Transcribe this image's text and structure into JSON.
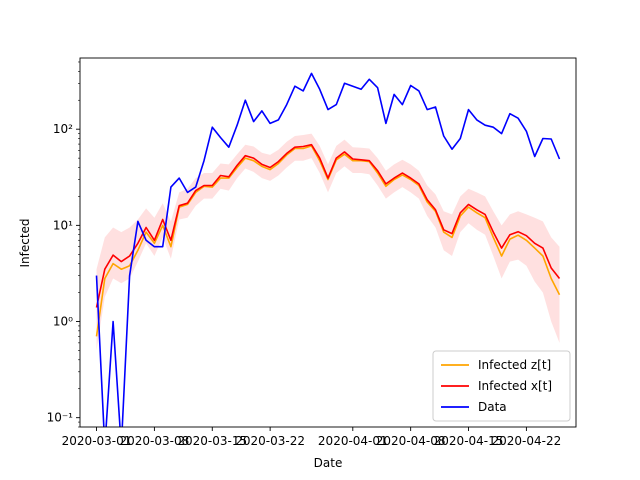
{
  "chart_data": {
    "type": "line",
    "title": "",
    "xlabel": "Date",
    "ylabel": "Infected",
    "yscale": "log",
    "ylim": [
      0.08,
      550
    ],
    "x_start": "2020-02-28",
    "x_end": "2020-04-28",
    "x_ticks": [
      {
        "date": "2020-03-01",
        "label": "2020-03-01"
      },
      {
        "date": "2020-03-08",
        "label": "2020-03-08"
      },
      {
        "date": "2020-03-15",
        "label": "2020-03-15"
      },
      {
        "date": "2020-03-22",
        "label": "2020-03-22"
      },
      {
        "date": "2020-04-01",
        "label": "2020-04-01"
      },
      {
        "date": "2020-04-08",
        "label": "2020-04-08"
      },
      {
        "date": "2020-04-15",
        "label": "2020-04-15"
      },
      {
        "date": "2020-04-22",
        "label": "2020-04-22"
      }
    ],
    "y_ticks": [
      {
        "value": 0.1,
        "label": "10⁻¹"
      },
      {
        "value": 1,
        "label": "10⁰"
      },
      {
        "value": 10,
        "label": "10¹"
      },
      {
        "value": 100,
        "label": "10²"
      }
    ],
    "legend_position": "lower right",
    "series": [
      {
        "name": "Infected z[t]",
        "color": "#ffa500",
        "x": [
          "2020-03-01",
          "2020-03-02",
          "2020-03-03",
          "2020-03-04",
          "2020-03-05",
          "2020-03-06",
          "2020-03-07",
          "2020-03-08",
          "2020-03-09",
          "2020-03-10",
          "2020-03-11",
          "2020-03-12",
          "2020-03-13",
          "2020-03-14",
          "2020-03-15",
          "2020-03-16",
          "2020-03-17",
          "2020-03-18",
          "2020-03-19",
          "2020-03-20",
          "2020-03-21",
          "2020-03-22",
          "2020-03-23",
          "2020-03-24",
          "2020-03-25",
          "2020-03-26",
          "2020-03-27",
          "2020-03-28",
          "2020-03-29",
          "2020-03-30",
          "2020-03-31",
          "2020-04-01",
          "2020-04-02",
          "2020-04-03",
          "2020-04-04",
          "2020-04-05",
          "2020-04-06",
          "2020-04-07",
          "2020-04-08",
          "2020-04-09",
          "2020-04-10",
          "2020-04-11",
          "2020-04-12",
          "2020-04-13",
          "2020-04-14",
          "2020-04-15",
          "2020-04-16",
          "2020-04-17",
          "2020-04-18",
          "2020-04-19",
          "2020-04-20",
          "2020-04-21",
          "2020-04-22",
          "2020-04-23",
          "2020-04-24",
          "2020-04-25",
          "2020-04-26"
        ],
        "values": [
          0.7,
          2.8,
          4.0,
          3.5,
          3.8,
          5.5,
          8.5,
          6.5,
          10,
          6.0,
          15.5,
          16.5,
          22,
          25.5,
          25,
          31,
          31,
          40,
          50,
          47,
          41,
          38,
          44,
          54,
          63,
          63,
          67,
          47,
          30,
          48,
          55,
          47,
          47,
          46,
          35,
          25.5,
          30,
          33.5,
          30,
          26,
          17.5,
          14,
          8.5,
          7.5,
          12.5,
          15.5,
          13.5,
          12,
          7.5,
          4.8,
          7.2,
          7.9,
          7.0,
          5.8,
          4.8,
          2.8,
          1.9
        ]
      },
      {
        "name": "Infected x[t]",
        "color": "#ff0000",
        "x": [
          "2020-03-01",
          "2020-03-02",
          "2020-03-03",
          "2020-03-04",
          "2020-03-05",
          "2020-03-06",
          "2020-03-07",
          "2020-03-08",
          "2020-03-09",
          "2020-03-10",
          "2020-03-11",
          "2020-03-12",
          "2020-03-13",
          "2020-03-14",
          "2020-03-15",
          "2020-03-16",
          "2020-03-17",
          "2020-03-18",
          "2020-03-19",
          "2020-03-20",
          "2020-03-21",
          "2020-03-22",
          "2020-03-23",
          "2020-03-24",
          "2020-03-25",
          "2020-03-26",
          "2020-03-27",
          "2020-03-28",
          "2020-03-29",
          "2020-03-30",
          "2020-03-31",
          "2020-04-01",
          "2020-04-02",
          "2020-04-03",
          "2020-04-04",
          "2020-04-05",
          "2020-04-06",
          "2020-04-07",
          "2020-04-08",
          "2020-04-09",
          "2020-04-10",
          "2020-04-11",
          "2020-04-12",
          "2020-04-13",
          "2020-04-14",
          "2020-04-15",
          "2020-04-16",
          "2020-04-17",
          "2020-04-18",
          "2020-04-19",
          "2020-04-20",
          "2020-04-21",
          "2020-04-22",
          "2020-04-23",
          "2020-04-24",
          "2020-04-25",
          "2020-04-26"
        ],
        "values": [
          1.4,
          3.5,
          4.9,
          4.2,
          4.8,
          6.5,
          9.5,
          7.0,
          11.5,
          7.0,
          16,
          17,
          23,
          26,
          26,
          33,
          32,
          42,
          53,
          50,
          43,
          40,
          46,
          56,
          65,
          66,
          69,
          50,
          31,
          50,
          58,
          49,
          48,
          47,
          37,
          27,
          31,
          35,
          31,
          27,
          18.5,
          14.5,
          9.0,
          8.2,
          13.5,
          16.5,
          14.5,
          13,
          8.5,
          5.8,
          8.0,
          8.6,
          7.8,
          6.5,
          5.8,
          3.6,
          2.8
        ]
      },
      {
        "name": "Data",
        "color": "#0000ff",
        "x": [
          "2020-03-01",
          "2020-03-02",
          "2020-03-03",
          "2020-03-04",
          "2020-03-05",
          "2020-03-06",
          "2020-03-07",
          "2020-03-08",
          "2020-03-09",
          "2020-03-10",
          "2020-03-11",
          "2020-03-12",
          "2020-03-13",
          "2020-03-14",
          "2020-03-15",
          "2020-03-16",
          "2020-03-17",
          "2020-03-18",
          "2020-03-19",
          "2020-03-20",
          "2020-03-21",
          "2020-03-22",
          "2020-03-23",
          "2020-03-24",
          "2020-03-25",
          "2020-03-26",
          "2020-03-27",
          "2020-03-28",
          "2020-03-29",
          "2020-03-30",
          "2020-03-31",
          "2020-04-01",
          "2020-04-02",
          "2020-04-03",
          "2020-04-04",
          "2020-04-05",
          "2020-04-06",
          "2020-04-07",
          "2020-04-08",
          "2020-04-09",
          "2020-04-10",
          "2020-04-11",
          "2020-04-12",
          "2020-04-13",
          "2020-04-14",
          "2020-04-15",
          "2020-04-16",
          "2020-04-17",
          "2020-04-18",
          "2020-04-19",
          "2020-04-20",
          "2020-04-21",
          "2020-04-22",
          "2020-04-23",
          "2020-04-24",
          "2020-04-25",
          "2020-04-26"
        ],
        "values": [
          3,
          0,
          1,
          0,
          3,
          11,
          7,
          6,
          6,
          25,
          31,
          22,
          25,
          47,
          105,
          82,
          65,
          110,
          200,
          120,
          155,
          115,
          125,
          180,
          280,
          250,
          380,
          260,
          160,
          180,
          300,
          280,
          260,
          330,
          270,
          115,
          230,
          180,
          285,
          250,
          160,
          170,
          85,
          62,
          80,
          160,
          125,
          110,
          105,
          90,
          145,
          130,
          95,
          52,
          80,
          79,
          49
        ]
      }
    ],
    "band": {
      "of": "Infected x[t]",
      "color": "#ff0000",
      "lower": [
        0.5,
        1.8,
        2.8,
        2.5,
        2.8,
        4.2,
        6.5,
        4.8,
        7.5,
        4.5,
        11.5,
        12,
        16,
        19,
        19,
        24,
        23,
        31,
        39,
        36,
        31,
        29,
        33,
        40,
        47,
        47,
        50,
        35,
        22,
        35,
        41,
        35,
        35,
        34,
        26,
        19,
        22,
        25,
        22,
        19,
        12.5,
        9.5,
        5.5,
        4.8,
        8.5,
        10.5,
        9.0,
        8.0,
        4.8,
        2.8,
        4.2,
        4.4,
        3.8,
        2.6,
        2.0,
        1.0,
        0.6
      ],
      "upper": [
        3.5,
        7.5,
        9.5,
        8.5,
        9.5,
        11.5,
        15,
        12,
        17,
        11,
        22,
        24,
        31,
        35,
        35,
        44,
        43,
        55,
        69,
        66,
        57,
        54,
        61,
        74,
        85,
        87,
        90,
        67,
        43,
        67,
        78,
        65,
        64,
        63,
        50,
        37,
        43,
        48,
        43,
        37,
        26,
        21,
        14,
        13,
        20,
        24,
        22,
        20,
        14,
        10,
        13,
        14,
        13,
        12,
        11,
        7.5,
        6.0
      ]
    }
  },
  "legend": {
    "items": [
      {
        "label": "Infected z[t]",
        "color": "#ffa500"
      },
      {
        "label": "Infected x[t]",
        "color": "#ff0000"
      },
      {
        "label": "Data",
        "color": "#0000ff"
      }
    ]
  }
}
